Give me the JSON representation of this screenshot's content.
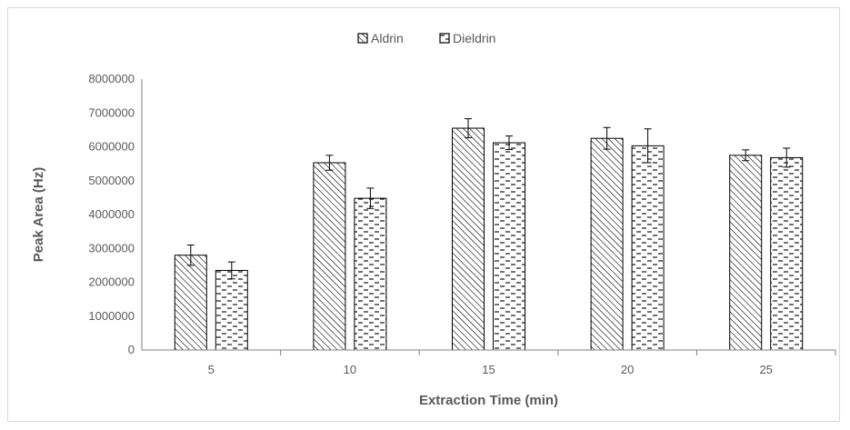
{
  "chart_data": {
    "type": "bar",
    "categories": [
      "5",
      "10",
      "15",
      "20",
      "25"
    ],
    "series": [
      {
        "name": "Aldrin",
        "pattern": "diagonal-hatch",
        "values": [
          2800000,
          5530000,
          6550000,
          6250000,
          5750000
        ],
        "error": [
          300000,
          220000,
          280000,
          320000,
          160000
        ]
      },
      {
        "name": "Dieldrin",
        "pattern": "dashed-horizontal",
        "values": [
          2350000,
          4480000,
          6120000,
          6030000,
          5680000
        ],
        "error": [
          250000,
          300000,
          200000,
          500000,
          280000
        ]
      }
    ],
    "xlabel": "Extraction Time (min)",
    "ylabel": "Peak Area (Hz)",
    "ylim": [
      0,
      8000000
    ],
    "yticks": [
      "0",
      "1000000",
      "2000000",
      "3000000",
      "4000000",
      "5000000",
      "6000000",
      "7000000",
      "8000000"
    ],
    "legend_position": "top-center",
    "grid": false,
    "colors": {
      "bar_stroke": "#000000",
      "axis": "#808080",
      "text": "#595959"
    }
  }
}
